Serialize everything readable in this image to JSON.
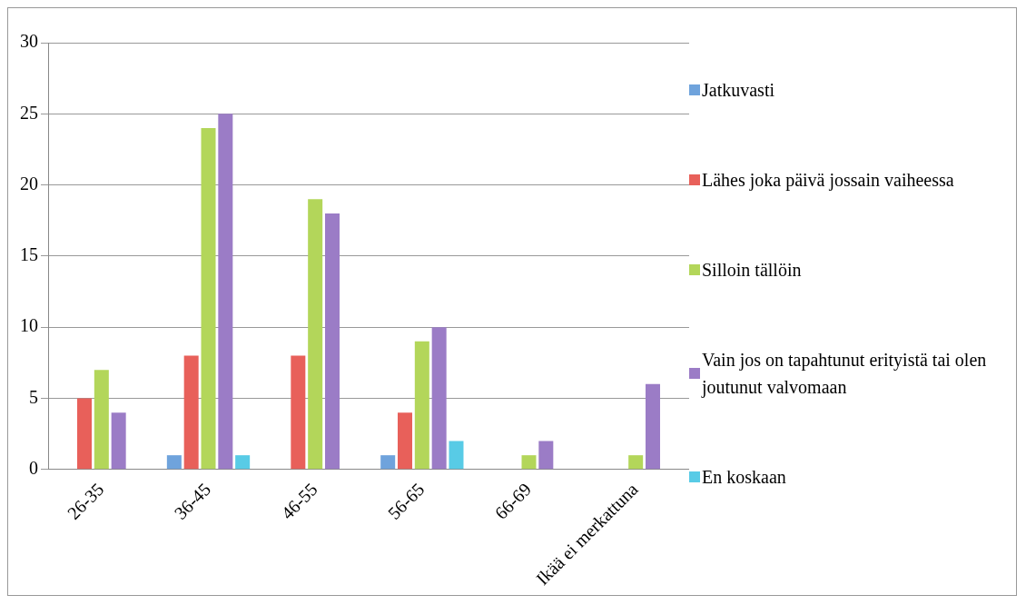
{
  "chart_data": {
    "type": "bar",
    "categories": [
      "26-35",
      "36-45",
      "46-55",
      "56-65",
      "66-69",
      "Ikää ei merkattuna"
    ],
    "series": [
      {
        "name": "Jatkuvasti",
        "color": "#6fa3dc",
        "values": [
          0,
          1,
          0,
          1,
          0,
          0
        ]
      },
      {
        "name": "Lähes joka päivä jossain vaiheessa",
        "color": "#e8605a",
        "values": [
          5,
          8,
          8,
          4,
          0,
          0
        ]
      },
      {
        "name": "Silloin tällöin",
        "color": "#b3d65a",
        "values": [
          7,
          24,
          19,
          9,
          1,
          1
        ]
      },
      {
        "name": "Vain jos on tapahtunut erityistä tai olen joutunut valvomaan",
        "color": "#9b7cc6",
        "values": [
          4,
          25,
          18,
          10,
          2,
          6
        ]
      },
      {
        "name": "En koskaan",
        "color": "#58cbe6",
        "values": [
          0,
          1,
          0,
          2,
          0,
          0
        ]
      }
    ],
    "ylim": [
      0,
      30
    ],
    "yticks": [
      0,
      5,
      10,
      15,
      20,
      25,
      30
    ],
    "grid": "y",
    "legend": "right"
  }
}
